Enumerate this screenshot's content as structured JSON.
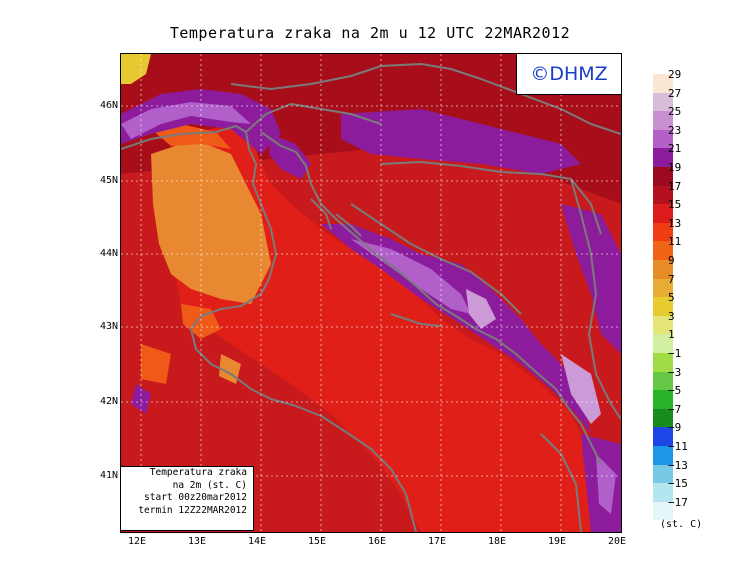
{
  "title": "Temperatura zraka na 2m u 12 UTC 22MAR2012",
  "logo": "©DHMZ",
  "info_box": [
    "Temperatura zraka",
    "na 2m (st. C)",
    "start 00z20mar2012",
    "termin 12Z22MAR2012"
  ],
  "latitude_ticks": [
    "46N",
    "45N",
    "44N",
    "43N",
    "42N",
    "41N"
  ],
  "longitude_ticks": [
    "12E",
    "13E",
    "14E",
    "15E",
    "16E",
    "17E",
    "18E",
    "19E",
    "20E"
  ],
  "legend": {
    "unit": "(st. C)",
    "labels": [
      "29",
      "27",
      "25",
      "23",
      "21",
      "19",
      "17",
      "15",
      "13",
      "11",
      "9",
      "7",
      "5",
      "3",
      "1",
      "−1",
      "−3",
      "−5",
      "−7",
      "−9",
      "−11",
      "−13",
      "−15",
      "−17"
    ],
    "colors": [
      "#fae6d2",
      "#d8bcd8",
      "#c890d0",
      "#b460c8",
      "#8c1c9c",
      "#9c0a1e",
      "#b4101e",
      "#dc1c1c",
      "#f03c14",
      "#f06418",
      "#e88c28",
      "#e6ac34",
      "#e6cc30",
      "#e6e678",
      "#d2eea0",
      "#a0dc46",
      "#64c846",
      "#28b428",
      "#168c1e",
      "#1e46e6",
      "#1e96e6",
      "#78c8e6",
      "#b4e6f0",
      "#e6f6f8"
    ]
  },
  "field_colors": {
    "sea": "#e02018",
    "land_dark": "#a80e1a",
    "land_mid": "#c81a1c",
    "purple": "#8c1c9c",
    "magenta": "#b060c8",
    "lilac": "#cc9ad6",
    "orange": "#e88830",
    "orange_red": "#f05a18",
    "yellow": "#e6c830",
    "coast": "#7a7a7a"
  }
}
